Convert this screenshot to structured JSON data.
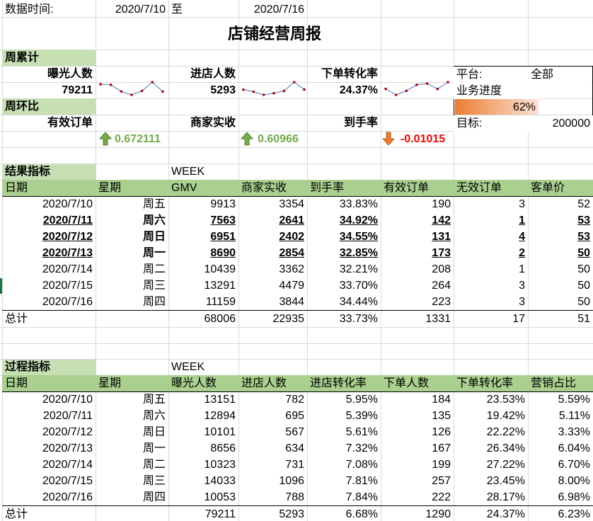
{
  "header": {
    "data_time_label": "数据时间:",
    "start_date": "2020/7/10",
    "to_label": "至",
    "end_date": "2020/7/16",
    "report_title": "店铺经营周报"
  },
  "weekly_total": {
    "section_label": "周累计",
    "metrics": [
      {
        "label": "曝光人数",
        "value": "79211",
        "trend": [
          13151,
          12894,
          10101,
          8656,
          10323,
          14033,
          10053
        ]
      },
      {
        "label": "进店人数",
        "value": "5293",
        "trend": [
          782,
          695,
          567,
          634,
          731,
          1096,
          788
        ]
      },
      {
        "label": "下单转化率",
        "value": "24.37%",
        "trend": [
          23.53,
          19.42,
          22.22,
          26.34,
          27.22,
          23.45,
          28.17
        ]
      }
    ]
  },
  "kpi_panel": {
    "platform_label": "平台:",
    "platform_value": "全部",
    "progress_label": "业务进度",
    "progress_value": "62%",
    "progress_fraction": 0.62,
    "target_label": "目标:",
    "target_value": "200000"
  },
  "week_over_week": {
    "section_label": "周环比",
    "metrics": [
      {
        "label": "有效订单",
        "value": "0.672111",
        "direction": "up"
      },
      {
        "label": "商家实收",
        "value": "0.60966",
        "direction": "up"
      },
      {
        "label": "到手率",
        "value": "-0.01015",
        "direction": "down"
      }
    ]
  },
  "result_table": {
    "section_label": "结果指标",
    "week_label": "WEEK",
    "columns": [
      "日期",
      "星期",
      "GMV",
      "商家实收",
      "到手率",
      "有效订单",
      "无效订单",
      "客单价"
    ],
    "rows": [
      {
        "date": "2020/7/10",
        "weekday": "周五",
        "gmv": "9913",
        "income": "3354",
        "rate": "33.83%",
        "valid": "190",
        "invalid": "3",
        "aov": "52",
        "bold": false
      },
      {
        "date": "2020/7/11",
        "weekday": "周六",
        "gmv": "7563",
        "income": "2641",
        "rate": "34.92%",
        "valid": "142",
        "invalid": "1",
        "aov": "53",
        "bold": true
      },
      {
        "date": "2020/7/12",
        "weekday": "周日",
        "gmv": "6951",
        "income": "2402",
        "rate": "34.55%",
        "valid": "131",
        "invalid": "4",
        "aov": "53",
        "bold": true
      },
      {
        "date": "2020/7/13",
        "weekday": "周一",
        "gmv": "8690",
        "income": "2854",
        "rate": "32.85%",
        "valid": "173",
        "invalid": "2",
        "aov": "50",
        "bold": true
      },
      {
        "date": "2020/7/14",
        "weekday": "周二",
        "gmv": "10439",
        "income": "3362",
        "rate": "32.21%",
        "valid": "208",
        "invalid": "1",
        "aov": "50",
        "bold": false
      },
      {
        "date": "2020/7/15",
        "weekday": "周三",
        "gmv": "13291",
        "income": "4479",
        "rate": "33.70%",
        "valid": "264",
        "invalid": "3",
        "aov": "50",
        "bold": false
      },
      {
        "date": "2020/7/16",
        "weekday": "周四",
        "gmv": "11159",
        "income": "3844",
        "rate": "34.44%",
        "valid": "223",
        "invalid": "3",
        "aov": "50",
        "bold": false
      }
    ],
    "total": {
      "label": "总计",
      "gmv": "68006",
      "income": "22935",
      "rate": "33.73%",
      "valid": "1331",
      "invalid": "17",
      "aov": "51"
    }
  },
  "process_table": {
    "section_label": "过程指标",
    "week_label": "WEEK",
    "columns": [
      "日期",
      "星期",
      "曝光人数",
      "进店人数",
      "进店转化率",
      "下单人数",
      "下单转化率",
      "营销占比"
    ],
    "rows": [
      {
        "date": "2020/7/10",
        "weekday": "周五",
        "exposure": "13151",
        "visitors": "782",
        "visit_rate": "5.95%",
        "buyers": "184",
        "order_rate": "23.53%",
        "marketing": "5.59%"
      },
      {
        "date": "2020/7/11",
        "weekday": "周六",
        "exposure": "12894",
        "visitors": "695",
        "visit_rate": "5.39%",
        "buyers": "135",
        "order_rate": "19.42%",
        "marketing": "5.11%"
      },
      {
        "date": "2020/7/12",
        "weekday": "周日",
        "exposure": "10101",
        "visitors": "567",
        "visit_rate": "5.61%",
        "buyers": "126",
        "order_rate": "22.22%",
        "marketing": "3.33%"
      },
      {
        "date": "2020/7/13",
        "weekday": "周一",
        "exposure": "8656",
        "visitors": "634",
        "visit_rate": "7.32%",
        "buyers": "167",
        "order_rate": "26.34%",
        "marketing": "6.04%"
      },
      {
        "date": "2020/7/14",
        "weekday": "周二",
        "exposure": "10323",
        "visitors": "731",
        "visit_rate": "7.08%",
        "buyers": "199",
        "order_rate": "27.22%",
        "marketing": "6.70%"
      },
      {
        "date": "2020/7/15",
        "weekday": "周三",
        "exposure": "14033",
        "visitors": "1096",
        "visit_rate": "7.81%",
        "buyers": "257",
        "order_rate": "23.45%",
        "marketing": "8.00%"
      },
      {
        "date": "2020/7/16",
        "weekday": "周四",
        "exposure": "10053",
        "visitors": "788",
        "visit_rate": "7.84%",
        "buyers": "222",
        "order_rate": "28.17%",
        "marketing": "6.98%"
      }
    ],
    "total": {
      "label": "总计",
      "exposure": "79211",
      "visitors": "5293",
      "visit_rate": "6.68%",
      "buyers": "1290",
      "order_rate": "24.37%",
      "marketing": "6.23%"
    }
  },
  "colors": {
    "section_band": "#c6e0b4",
    "header_band": "#a9d08e",
    "sparkline_line": "#4472c4",
    "sparkline_point": "#c00000",
    "positive": "#70ad47",
    "negative": "#ff0000",
    "progress_start": "#ed7d31"
  }
}
